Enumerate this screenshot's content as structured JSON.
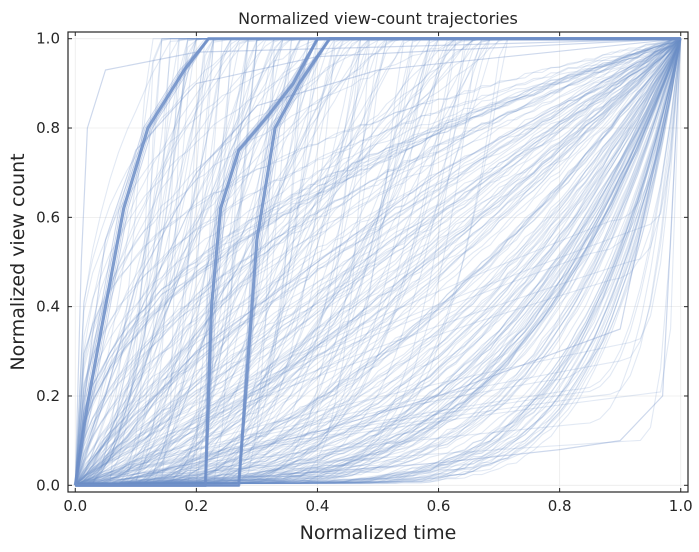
{
  "chart_data": {
    "type": "line",
    "title": "Normalized view-count trajectories",
    "xlabel": "Normalized time",
    "ylabel": "Normalized view count",
    "xlim": [
      -0.012,
      1.012
    ],
    "ylim": [
      -0.015,
      1.015
    ],
    "xticks": [
      0.0,
      0.2,
      0.4,
      0.6,
      0.8,
      1.0
    ],
    "xtick_labels": [
      "0.0",
      "0.2",
      "0.4",
      "0.6",
      "0.8",
      "1.0"
    ],
    "yticks": [
      0.0,
      0.2,
      0.4,
      0.6,
      0.8,
      1.0
    ],
    "ytick_labels": [
      "0.0",
      "0.2",
      "0.4",
      "0.6",
      "0.8",
      "1.0"
    ],
    "grid": true,
    "legend": "none",
    "line_color": "#7090c8",
    "line_opacity": 0.2,
    "trajectory_count": 320,
    "series": [
      {
        "values": [
          [
            0.0,
            0.0
          ],
          [
            0.02,
            0.25
          ],
          [
            0.05,
            0.55
          ],
          [
            0.1,
            0.75
          ],
          [
            0.2,
            0.9
          ],
          [
            0.4,
            0.96
          ],
          [
            1.0,
            1.0
          ]
        ]
      },
      {
        "values": [
          [
            0.0,
            0.0
          ],
          [
            0.05,
            0.2
          ],
          [
            0.1,
            0.45
          ],
          [
            0.2,
            0.7
          ],
          [
            0.3,
            0.85
          ],
          [
            0.5,
            0.93
          ],
          [
            1.0,
            1.0
          ]
        ]
      },
      {
        "values": [
          [
            0.0,
            0.0
          ],
          [
            0.1,
            0.15
          ],
          [
            0.2,
            0.3
          ],
          [
            0.4,
            0.5
          ],
          [
            0.6,
            0.7
          ],
          [
            0.8,
            0.85
          ],
          [
            1.0,
            1.0
          ]
        ]
      },
      {
        "values": [
          [
            0.0,
            0.0
          ],
          [
            0.2,
            0.05
          ],
          [
            0.4,
            0.12
          ],
          [
            0.6,
            0.2
          ],
          [
            0.8,
            0.3
          ],
          [
            0.9,
            0.35
          ],
          [
            1.0,
            1.0
          ]
        ]
      },
      {
        "values": [
          [
            0.0,
            0.0
          ],
          [
            0.3,
            0.02
          ],
          [
            0.6,
            0.05
          ],
          [
            0.8,
            0.08
          ],
          [
            0.9,
            0.1
          ],
          [
            0.97,
            0.2
          ],
          [
            1.0,
            1.0
          ]
        ]
      },
      {
        "values": [
          [
            0.0,
            0.0
          ],
          [
            0.01,
            0.5
          ],
          [
            0.02,
            0.8
          ],
          [
            0.05,
            0.93
          ],
          [
            0.2,
            0.97
          ],
          [
            1.0,
            1.0
          ]
        ]
      },
      {
        "values": [
          [
            0.0,
            0.0
          ],
          [
            0.02,
            0.18
          ],
          [
            0.05,
            0.4
          ],
          [
            0.08,
            0.62
          ],
          [
            0.12,
            0.8
          ],
          [
            0.18,
            0.93
          ],
          [
            0.22,
            1.0
          ],
          [
            1.0,
            1.0
          ]
        ]
      },
      {
        "values": [
          [
            0.0,
            0.0
          ],
          [
            0.215,
            0.0
          ],
          [
            0.225,
            0.4
          ],
          [
            0.24,
            0.62
          ],
          [
            0.27,
            0.75
          ],
          [
            0.32,
            0.83
          ],
          [
            0.36,
            0.9
          ],
          [
            0.4,
            1.0
          ],
          [
            1.0,
            1.0
          ]
        ]
      },
      {
        "values": [
          [
            0.0,
            0.0
          ],
          [
            0.27,
            0.0
          ],
          [
            0.3,
            0.55
          ],
          [
            0.33,
            0.8
          ],
          [
            0.37,
            0.9
          ],
          [
            0.42,
            1.0
          ],
          [
            1.0,
            1.0
          ]
        ]
      }
    ]
  }
}
